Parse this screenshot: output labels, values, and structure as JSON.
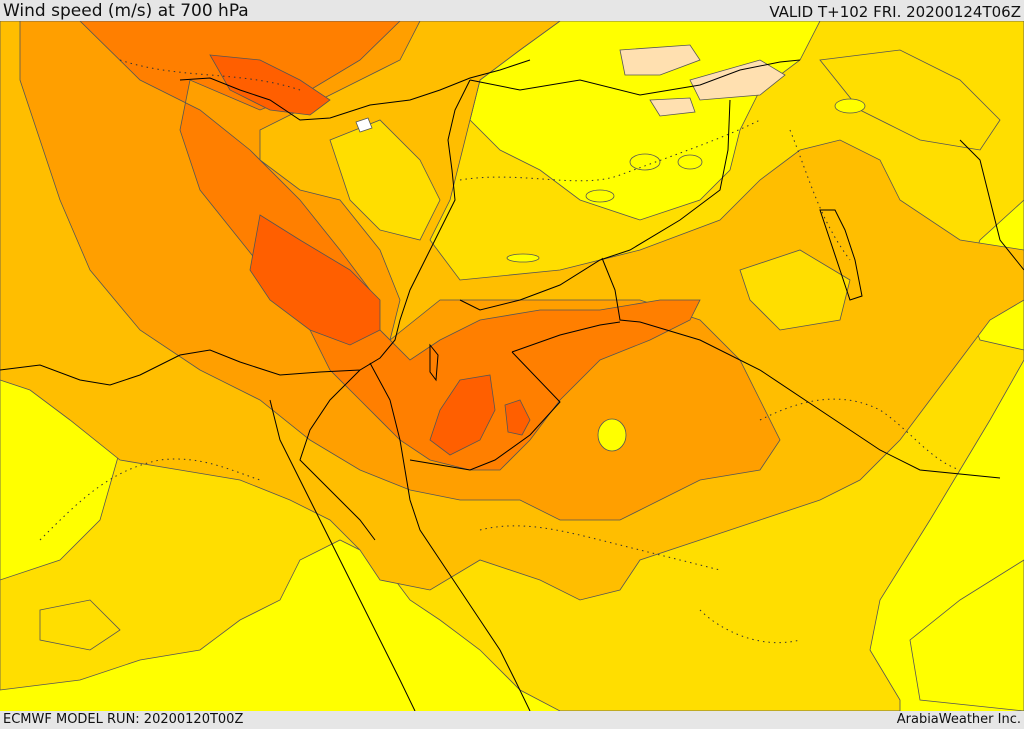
{
  "header": {
    "title": "Wind speed (m/s) at 700 hPa",
    "valid_time": "VALID T+102 FRI. 20200124T06Z"
  },
  "footer": {
    "model_run": "ECMWF MODEL RUN: 20200120T00Z",
    "credit": "ArabiaWeather Inc."
  },
  "colors": {
    "band_1": "#ffff00",
    "band_2": "#ffde00",
    "band_3": "#ffbe00",
    "band_4": "#ff9f00",
    "band_5": "#ff7f00",
    "band_6": "#ff5f00",
    "light_patch": "#ffe0b0",
    "white_patch": "#ffffff",
    "contour": "#444444",
    "border": "#000000"
  }
}
